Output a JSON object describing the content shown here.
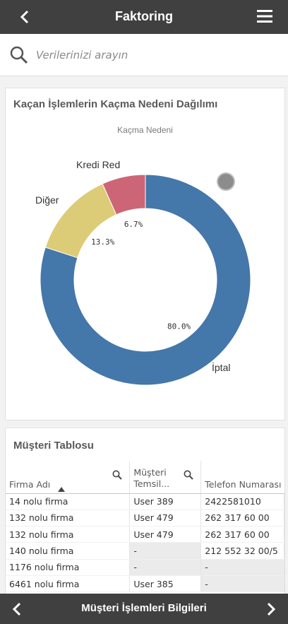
{
  "header": {
    "title": "Faktoring"
  },
  "search": {
    "placeholder": "Verilerinizi arayın"
  },
  "chart_card": {
    "title": "Kaçan İşlemlerin Kaçma Nedeni Dağılımı",
    "subtitle": "Kaçma Nedeni"
  },
  "chart_data": {
    "type": "pie",
    "title": "Kaçan İşlemlerin Kaçma Nedeni Dağılımı",
    "subtitle": "Kaçma Nedeni",
    "donut": true,
    "slices": [
      {
        "label": "İptal",
        "value": 80.0,
        "display": "80.0%",
        "color": "#4477aa"
      },
      {
        "label": "Diğer",
        "value": 13.3,
        "display": "13.3%",
        "color": "#ddcc77"
      },
      {
        "label": "Kredi Red",
        "value": 6.7,
        "display": "6.7%",
        "color": "#cc6677"
      }
    ]
  },
  "table_card": {
    "title": "Müşteri Tablosu",
    "columns": [
      "Firma Adı",
      "Müşteri Temsil...",
      "Telefon Numarası"
    ],
    "rows": [
      [
        "14 nolu firma",
        "User 389",
        "2422581010"
      ],
      [
        "132 nolu firma",
        "User 479",
        "262 317 60 00"
      ],
      [
        "132 nolu firma",
        "User 479",
        "262 317 60 00"
      ],
      [
        "140 nolu firma",
        "-",
        "212 552 32 00/5"
      ],
      [
        "1176 nolu firma",
        "-",
        "-"
      ],
      [
        "6461 nolu firma",
        "User 385",
        "-"
      ]
    ]
  },
  "footer": {
    "title": "Müşteri İşlemleri Bilgileri"
  }
}
